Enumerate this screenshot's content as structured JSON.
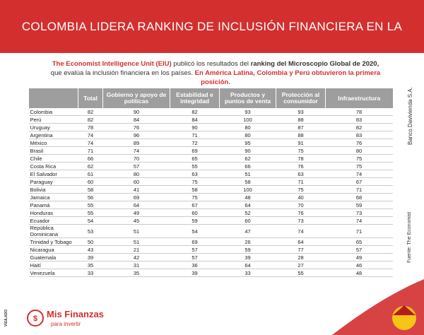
{
  "header": {
    "title": "COLOMBIA LIDERA RANKING DE INCLUSIÓN FINANCIERA EN LA REGIÓN"
  },
  "intro": [
    "The Economist Intelligence Unit (EIU)",
    " publicó los resultados del ",
    "ranking del Microscopio Global de 2020,",
    " que evalúa la inclusión financiera en los países. ",
    "En América Latina, Colombia y Perú obtuvieron la primera posición."
  ],
  "table": {
    "columns": [
      "Total",
      "Gobierno y apoyo de políticas",
      "Estabilidad e integridad",
      "Productos y puntos de venta",
      "Protección al consumidor",
      "Infraestructura"
    ],
    "rows": [
      [
        "Colombia",
        82,
        90,
        82,
        93,
        93,
        78
      ],
      [
        "Perú",
        82,
        84,
        84,
        100,
        88,
        83
      ],
      [
        "Uruguay",
        78,
        76,
        90,
        80,
        87,
        82
      ],
      [
        "Argentina",
        74,
        96,
        71,
        80,
        88,
        83
      ],
      [
        "México",
        74,
        89,
        72,
        95,
        91,
        76
      ],
      [
        "Brasil",
        71,
        74,
        69,
        90,
        75,
        80
      ],
      [
        "Chile",
        66,
        70,
        65,
        62,
        78,
        75
      ],
      [
        "Costa Rica",
        62,
        57,
        55,
        66,
        76,
        75
      ],
      [
        "El Salvador",
        61,
        80,
        63,
        51,
        63,
        74
      ],
      [
        "Paraguay",
        60,
        60,
        75,
        58,
        71,
        67
      ],
      [
        "Bolivia",
        58,
        41,
        58,
        100,
        75,
        71
      ],
      [
        "Jamaica",
        56,
        69,
        75,
        48,
        40,
        68
      ],
      [
        "Panamá",
        55,
        64,
        67,
        64,
        70,
        59
      ],
      [
        "Honduras",
        55,
        49,
        60,
        52,
        76,
        73
      ],
      [
        "Ecuador",
        54,
        45,
        59,
        60,
        73,
        74
      ],
      [
        "República Dominicana",
        53,
        51,
        54,
        47,
        74,
        71
      ],
      [
        "Trinidad y Tobago",
        50,
        51,
        69,
        26,
        64,
        65
      ],
      [
        "Nicaragua",
        43,
        21,
        57,
        59,
        77,
        57
      ],
      [
        "Guatemala",
        39,
        42,
        57,
        39,
        28,
        49
      ],
      [
        "Haití",
        35,
        31,
        36,
        64,
        27,
        46
      ],
      [
        "Venezuela",
        33,
        35,
        39,
        33,
        55,
        48
      ]
    ]
  },
  "side": {
    "bank": "Banco Davivienda S.A.",
    "source": "Fuente: The Economist",
    "vigilado": "VIGILADO"
  },
  "logo": {
    "name": "Mis Finanzas",
    "tagline": "para invertir"
  }
}
